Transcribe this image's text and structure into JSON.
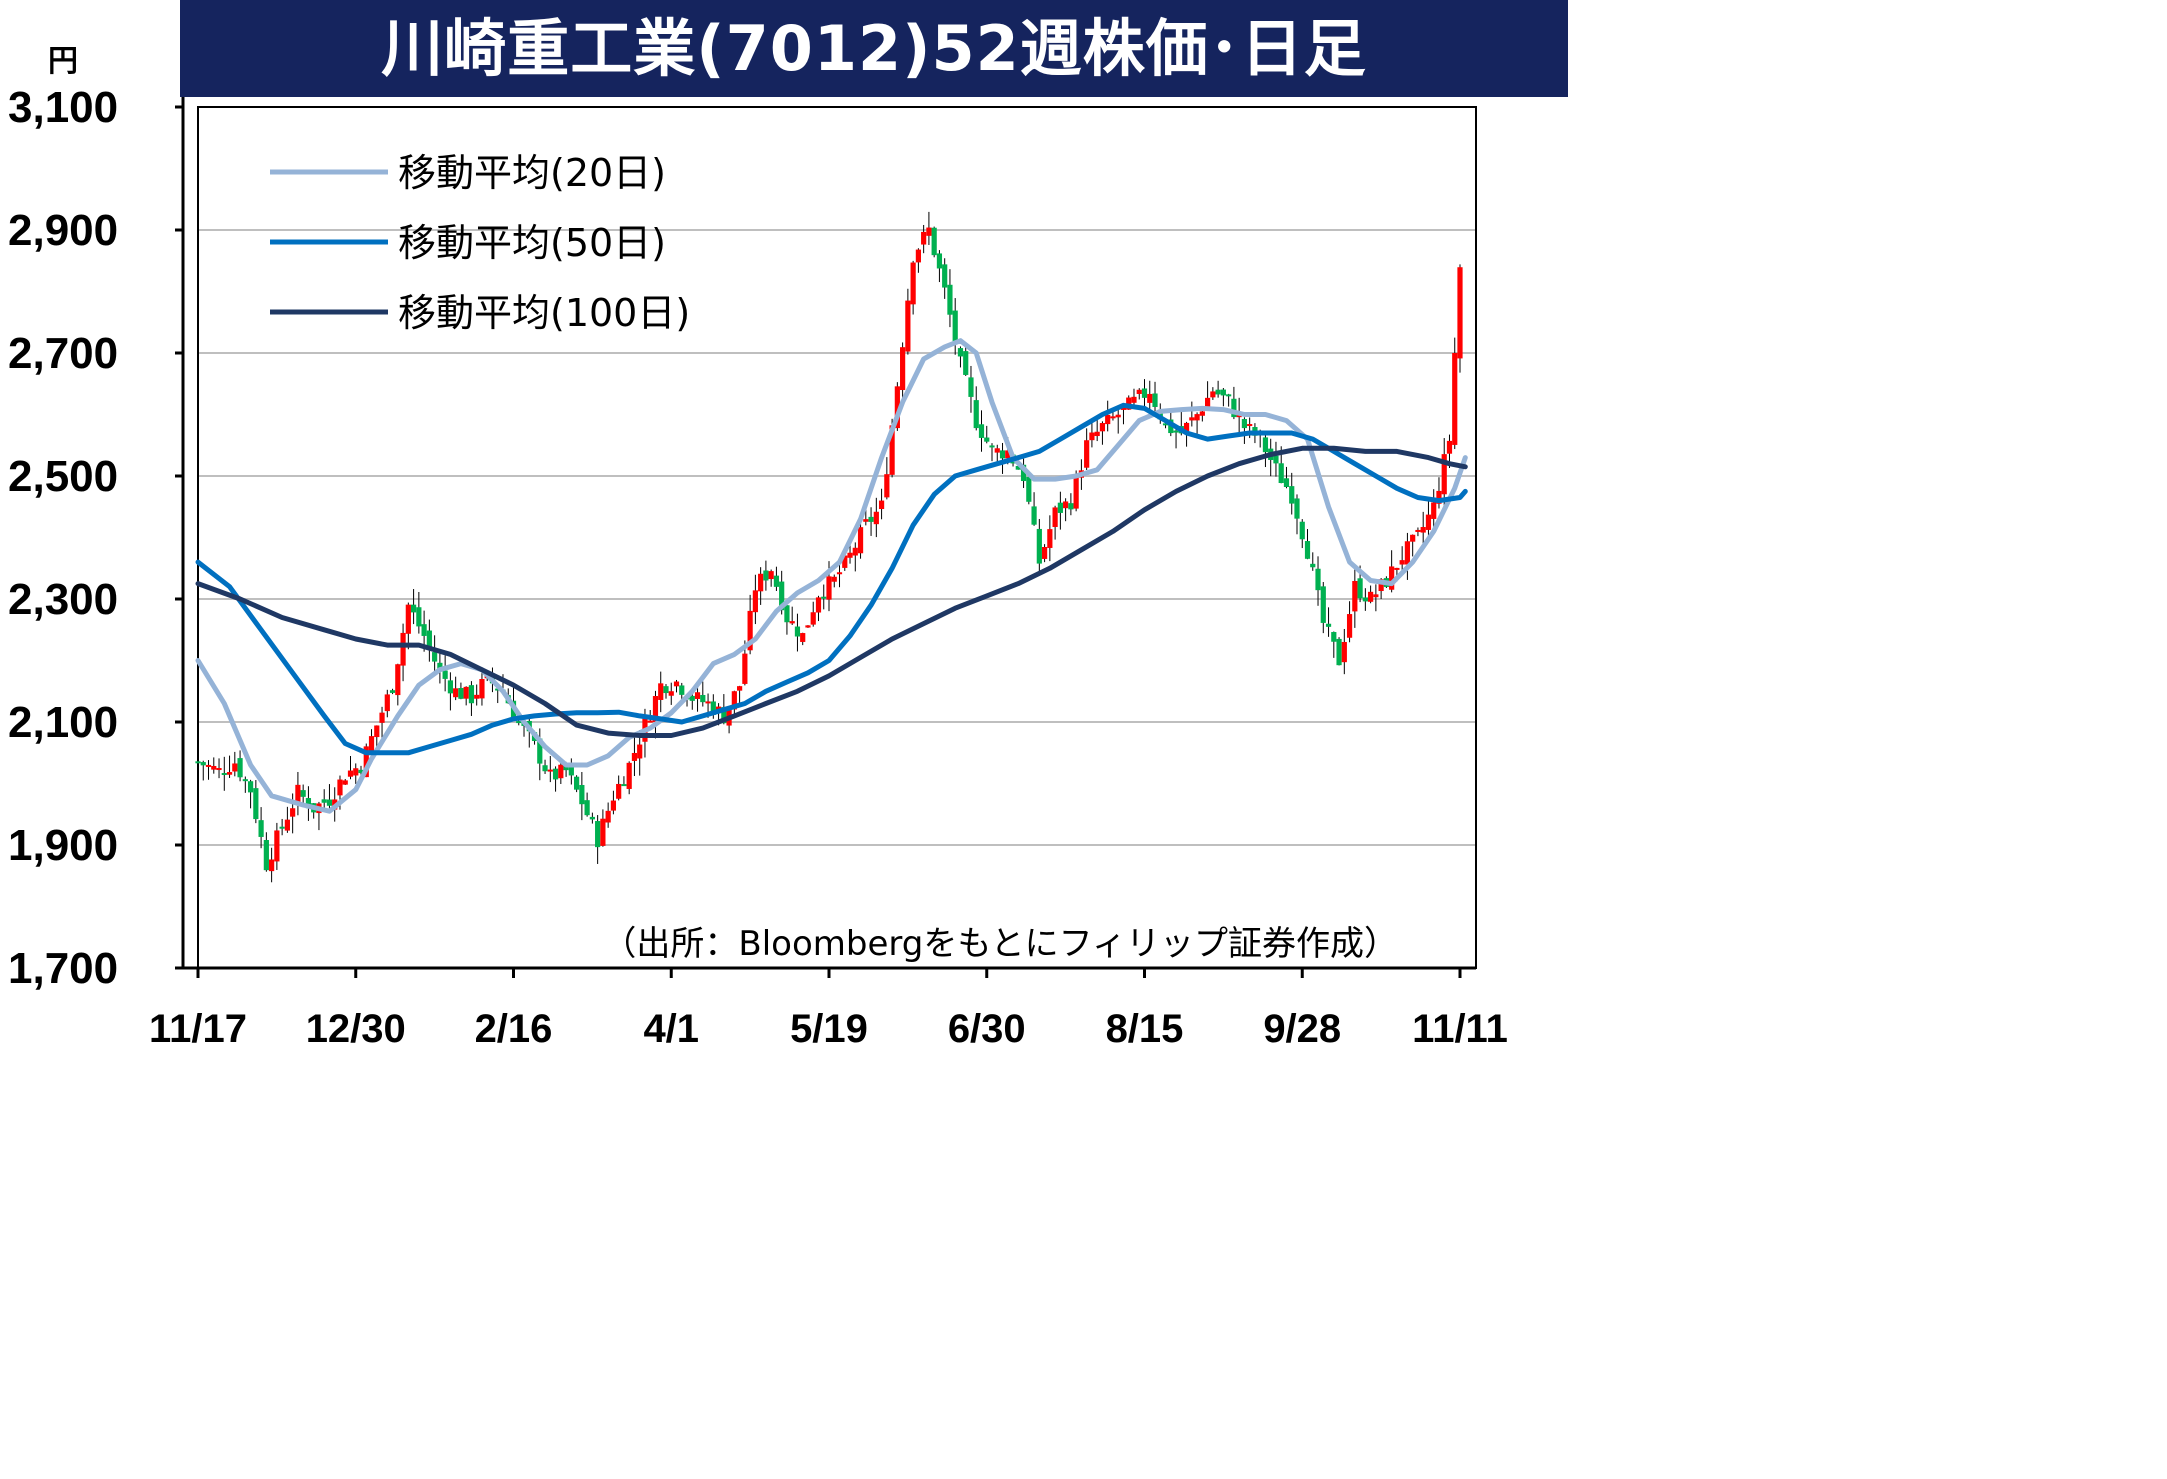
{
  "chart_data": {
    "type": "candlestick",
    "title": "川崎重工業(7012)52週株価･日足",
    "y_unit": "円",
    "ylim": [
      1700,
      3100
    ],
    "y_ticks": [
      "3,100",
      "2,900",
      "2,700",
      "2,500",
      "2,300",
      "2,100",
      "1,900",
      "1,700"
    ],
    "y_tick_values": [
      3100,
      2900,
      2700,
      2500,
      2300,
      2100,
      1900,
      1700
    ],
    "x_ticks": [
      "11/17",
      "12/30",
      "2/16",
      "4/1",
      "5/19",
      "6/30",
      "8/15",
      "9/28",
      "11/11"
    ],
    "x_tick_index": [
      0,
      30,
      60,
      90,
      120,
      150,
      180,
      210,
      240
    ],
    "n_days": 241,
    "grid": true,
    "legend_position": "top-left",
    "colors": {
      "up": "#ff0000",
      "down": "#00b050"
    },
    "series": [
      {
        "name": "移動平均(20日)",
        "color": "#95b3d7",
        "points": [
          [
            0,
            2200
          ],
          [
            5,
            2130
          ],
          [
            10,
            2030
          ],
          [
            14,
            1980
          ],
          [
            20,
            1965
          ],
          [
            25,
            1955
          ],
          [
            30,
            1990
          ],
          [
            33,
            2040
          ],
          [
            38,
            2110
          ],
          [
            42,
            2160
          ],
          [
            46,
            2185
          ],
          [
            50,
            2195
          ],
          [
            54,
            2185
          ],
          [
            58,
            2150
          ],
          [
            62,
            2100
          ],
          [
            66,
            2060
          ],
          [
            70,
            2030
          ],
          [
            74,
            2030
          ],
          [
            78,
            2045
          ],
          [
            82,
            2075
          ],
          [
            86,
            2090
          ],
          [
            90,
            2115
          ],
          [
            94,
            2150
          ],
          [
            98,
            2195
          ],
          [
            102,
            2210
          ],
          [
            106,
            2235
          ],
          [
            110,
            2280
          ],
          [
            114,
            2310
          ],
          [
            118,
            2330
          ],
          [
            122,
            2360
          ],
          [
            126,
            2430
          ],
          [
            130,
            2530
          ],
          [
            134,
            2620
          ],
          [
            138,
            2690
          ],
          [
            142,
            2710
          ],
          [
            145,
            2720
          ],
          [
            148,
            2700
          ],
          [
            151,
            2620
          ],
          [
            155,
            2530
          ],
          [
            159,
            2495
          ],
          [
            163,
            2495
          ],
          [
            167,
            2500
          ],
          [
            171,
            2510
          ],
          [
            175,
            2550
          ],
          [
            179,
            2590
          ],
          [
            183,
            2605
          ],
          [
            187,
            2608
          ],
          [
            191,
            2610
          ],
          [
            195,
            2608
          ],
          [
            199,
            2600
          ],
          [
            203,
            2600
          ],
          [
            207,
            2590
          ],
          [
            211,
            2560
          ],
          [
            215,
            2450
          ],
          [
            219,
            2360
          ],
          [
            223,
            2330
          ],
          [
            227,
            2325
          ],
          [
            231,
            2360
          ],
          [
            235,
            2410
          ],
          [
            239,
            2480
          ],
          [
            241,
            2530
          ]
        ]
      },
      {
        "name": "移動平均(50日)",
        "color": "#0070c0",
        "points": [
          [
            0,
            2360
          ],
          [
            6,
            2320
          ],
          [
            12,
            2250
          ],
          [
            18,
            2180
          ],
          [
            24,
            2110
          ],
          [
            28,
            2065
          ],
          [
            32,
            2050
          ],
          [
            36,
            2050
          ],
          [
            40,
            2050
          ],
          [
            44,
            2060
          ],
          [
            48,
            2070
          ],
          [
            52,
            2080
          ],
          [
            56,
            2095
          ],
          [
            60,
            2105
          ],
          [
            64,
            2110
          ],
          [
            68,
            2113
          ],
          [
            72,
            2115
          ],
          [
            76,
            2115
          ],
          [
            80,
            2116
          ],
          [
            84,
            2110
          ],
          [
            88,
            2105
          ],
          [
            92,
            2100
          ],
          [
            96,
            2110
          ],
          [
            100,
            2120
          ],
          [
            104,
            2130
          ],
          [
            108,
            2150
          ],
          [
            112,
            2165
          ],
          [
            116,
            2180
          ],
          [
            120,
            2200
          ],
          [
            124,
            2240
          ],
          [
            128,
            2290
          ],
          [
            132,
            2350
          ],
          [
            136,
            2420
          ],
          [
            140,
            2470
          ],
          [
            144,
            2500
          ],
          [
            148,
            2510
          ],
          [
            152,
            2520
          ],
          [
            156,
            2530
          ],
          [
            160,
            2540
          ],
          [
            164,
            2560
          ],
          [
            168,
            2580
          ],
          [
            172,
            2600
          ],
          [
            176,
            2615
          ],
          [
            180,
            2610
          ],
          [
            184,
            2590
          ],
          [
            188,
            2570
          ],
          [
            192,
            2560
          ],
          [
            196,
            2565
          ],
          [
            200,
            2570
          ],
          [
            204,
            2570
          ],
          [
            208,
            2570
          ],
          [
            212,
            2560
          ],
          [
            216,
            2540
          ],
          [
            220,
            2520
          ],
          [
            224,
            2500
          ],
          [
            228,
            2480
          ],
          [
            232,
            2465
          ],
          [
            236,
            2460
          ],
          [
            240,
            2465
          ],
          [
            241,
            2475
          ]
        ]
      },
      {
        "name": "移動平均(100日)",
        "color": "#1f3864",
        "points": [
          [
            0,
            2325
          ],
          [
            8,
            2300
          ],
          [
            16,
            2270
          ],
          [
            24,
            2250
          ],
          [
            30,
            2235
          ],
          [
            36,
            2225
          ],
          [
            42,
            2225
          ],
          [
            48,
            2210
          ],
          [
            54,
            2185
          ],
          [
            60,
            2160
          ],
          [
            66,
            2130
          ],
          [
            72,
            2095
          ],
          [
            78,
            2082
          ],
          [
            84,
            2078
          ],
          [
            90,
            2078
          ],
          [
            96,
            2090
          ],
          [
            102,
            2110
          ],
          [
            108,
            2130
          ],
          [
            114,
            2150
          ],
          [
            120,
            2175
          ],
          [
            126,
            2205
          ],
          [
            132,
            2235
          ],
          [
            138,
            2260
          ],
          [
            144,
            2285
          ],
          [
            150,
            2305
          ],
          [
            156,
            2325
          ],
          [
            162,
            2350
          ],
          [
            168,
            2380
          ],
          [
            174,
            2410
          ],
          [
            180,
            2445
          ],
          [
            186,
            2475
          ],
          [
            192,
            2500
          ],
          [
            198,
            2520
          ],
          [
            204,
            2535
          ],
          [
            210,
            2545
          ],
          [
            216,
            2545
          ],
          [
            222,
            2540
          ],
          [
            228,
            2540
          ],
          [
            234,
            2530
          ],
          [
            238,
            2520
          ],
          [
            241,
            2515
          ]
        ]
      }
    ],
    "candle_anchors": [
      [
        0,
        2035
      ],
      [
        4,
        2020
      ],
      [
        7,
        2035
      ],
      [
        10,
        1990
      ],
      [
        13,
        1870
      ],
      [
        16,
        1930
      ],
      [
        19,
        1985
      ],
      [
        22,
        1960
      ],
      [
        25,
        1975
      ],
      [
        28,
        2015
      ],
      [
        31,
        2030
      ],
      [
        34,
        2095
      ],
      [
        37,
        2160
      ],
      [
        40,
        2290
      ],
      [
        43,
        2240
      ],
      [
        46,
        2180
      ],
      [
        49,
        2150
      ],
      [
        52,
        2140
      ],
      [
        55,
        2170
      ],
      [
        58,
        2150
      ],
      [
        61,
        2100
      ],
      [
        64,
        2060
      ],
      [
        67,
        2010
      ],
      [
        70,
        2020
      ],
      [
        73,
        1970
      ],
      [
        76,
        1910
      ],
      [
        79,
        1980
      ],
      [
        82,
        2030
      ],
      [
        85,
        2095
      ],
      [
        88,
        2160
      ],
      [
        91,
        2165
      ],
      [
        94,
        2140
      ],
      [
        97,
        2130
      ],
      [
        100,
        2110
      ],
      [
        103,
        2160
      ],
      [
        106,
        2320
      ],
      [
        109,
        2350
      ],
      [
        112,
        2270
      ],
      [
        115,
        2240
      ],
      [
        118,
        2310
      ],
      [
        121,
        2330
      ],
      [
        124,
        2370
      ],
      [
        127,
        2420
      ],
      [
        130,
        2450
      ],
      [
        133,
        2650
      ],
      [
        136,
        2860
      ],
      [
        139,
        2900
      ],
      [
        142,
        2800
      ],
      [
        145,
        2680
      ],
      [
        148,
        2590
      ],
      [
        151,
        2540
      ],
      [
        154,
        2540
      ],
      [
        157,
        2500
      ],
      [
        160,
        2360
      ],
      [
        163,
        2440
      ],
      [
        166,
        2460
      ],
      [
        169,
        2550
      ],
      [
        172,
        2580
      ],
      [
        175,
        2600
      ],
      [
        178,
        2620
      ],
      [
        181,
        2640
      ],
      [
        184,
        2580
      ],
      [
        187,
        2570
      ],
      [
        190,
        2600
      ],
      [
        193,
        2640
      ],
      [
        196,
        2620
      ],
      [
        199,
        2580
      ],
      [
        202,
        2560
      ],
      [
        205,
        2510
      ],
      [
        208,
        2470
      ],
      [
        211,
        2380
      ],
      [
        214,
        2260
      ],
      [
        217,
        2200
      ],
      [
        220,
        2320
      ],
      [
        223,
        2300
      ],
      [
        226,
        2330
      ],
      [
        229,
        2370
      ],
      [
        232,
        2400
      ],
      [
        235,
        2450
      ],
      [
        238,
        2560
      ],
      [
        240,
        2840
      ]
    ],
    "annotation": "（出所：Bloombergをもとにフィリップ証券作成）"
  }
}
